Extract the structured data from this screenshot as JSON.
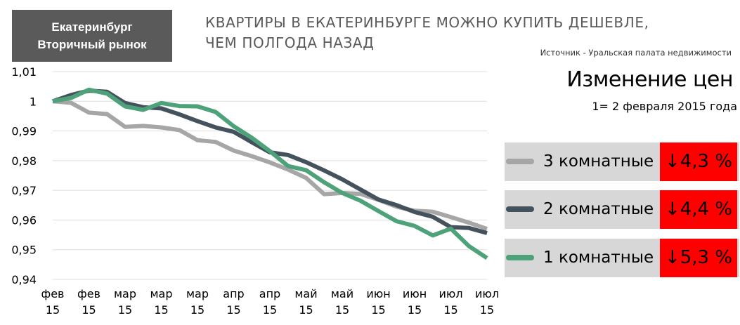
{
  "header": {
    "badge_line1": "Екатеринбург",
    "badge_line2": "Вторичный рынок",
    "headline_line1": "КВАРТИРЫ В ЕКАТЕРИНБУРГЕ МОЖНО КУПИТЬ ДЕШЕВЛЕ,",
    "headline_line2": "ЧЕМ ПОЛГОДА НАЗАД",
    "source": "Источник - Уральская палата недвижимости"
  },
  "chart_title": "Изменение цен",
  "chart_subtitle": "1= 2 февраля 2015 года",
  "legend": [
    {
      "name": "3 комнатные",
      "change": "↓4,3 %",
      "color": "#a6a6a6"
    },
    {
      "name": "2 комнатные",
      "change": "↓4,4 %",
      "color": "#44525e"
    },
    {
      "name": "1 комнатные",
      "change": "↓5,3 %",
      "color": "#4ea27a"
    }
  ],
  "colors": {
    "badge_bg": "#5a5a5a",
    "change_bg": "#ff0000",
    "legend_row_bg": "#d7d7d7",
    "gridline": "#dddddd"
  },
  "chart_data": {
    "type": "line",
    "grid": true,
    "legend_placement": "right",
    "ylim": [
      0.94,
      1.01
    ],
    "yticks": [
      "0,94",
      "0,95",
      "0,96",
      "0,97",
      "0,98",
      "0,99",
      "1",
      "1,01"
    ],
    "yticks_values": [
      0.94,
      0.95,
      0.96,
      0.97,
      0.98,
      0.99,
      1.0,
      1.01
    ],
    "xtick_labels": [
      [
        "фев",
        "15"
      ],
      [
        "фев",
        "15"
      ],
      [
        "мар",
        "15"
      ],
      [
        "мар",
        "15"
      ],
      [
        "мар",
        "15"
      ],
      [
        "апр",
        "15"
      ],
      [
        "апр",
        "15"
      ],
      [
        "май",
        "15"
      ],
      [
        "май",
        "15"
      ],
      [
        "июн",
        "15"
      ],
      [
        "июн",
        "15"
      ],
      [
        "июл",
        "15"
      ],
      [
        "июл",
        "15"
      ]
    ],
    "series": [
      {
        "name": "3 комнатные",
        "color": "#a6a6a6",
        "values": [
          1.0,
          0.9995,
          0.9962,
          0.9957,
          0.9914,
          0.9917,
          0.9912,
          0.9903,
          0.9869,
          0.9863,
          0.9834,
          0.9815,
          0.9794,
          0.977,
          0.9742,
          0.9687,
          0.9691,
          0.9688,
          0.9668,
          0.9645,
          0.9631,
          0.9628,
          0.961,
          0.9591,
          0.957
        ]
      },
      {
        "name": "2 комнатные",
        "color": "#44525e",
        "values": [
          1.0,
          1.0021,
          1.0036,
          1.0032,
          0.9994,
          0.998,
          0.9976,
          0.9956,
          0.9933,
          0.9912,
          0.9897,
          0.9862,
          0.9828,
          0.9819,
          0.9795,
          0.9767,
          0.9737,
          0.9703,
          0.9669,
          0.965,
          0.9627,
          0.9611,
          0.9576,
          0.9573,
          0.9556
        ]
      },
      {
        "name": "1 комнатные",
        "color": "#4ea27a",
        "values": [
          1.0,
          1.0011,
          1.0039,
          1.0026,
          0.9983,
          0.9971,
          0.9994,
          0.9984,
          0.9983,
          0.9964,
          0.9916,
          0.9877,
          0.9832,
          0.9782,
          0.9768,
          0.9727,
          0.9691,
          0.9665,
          0.963,
          0.9596,
          0.958,
          0.9548,
          0.9571,
          0.9512,
          0.9472
        ]
      }
    ]
  }
}
